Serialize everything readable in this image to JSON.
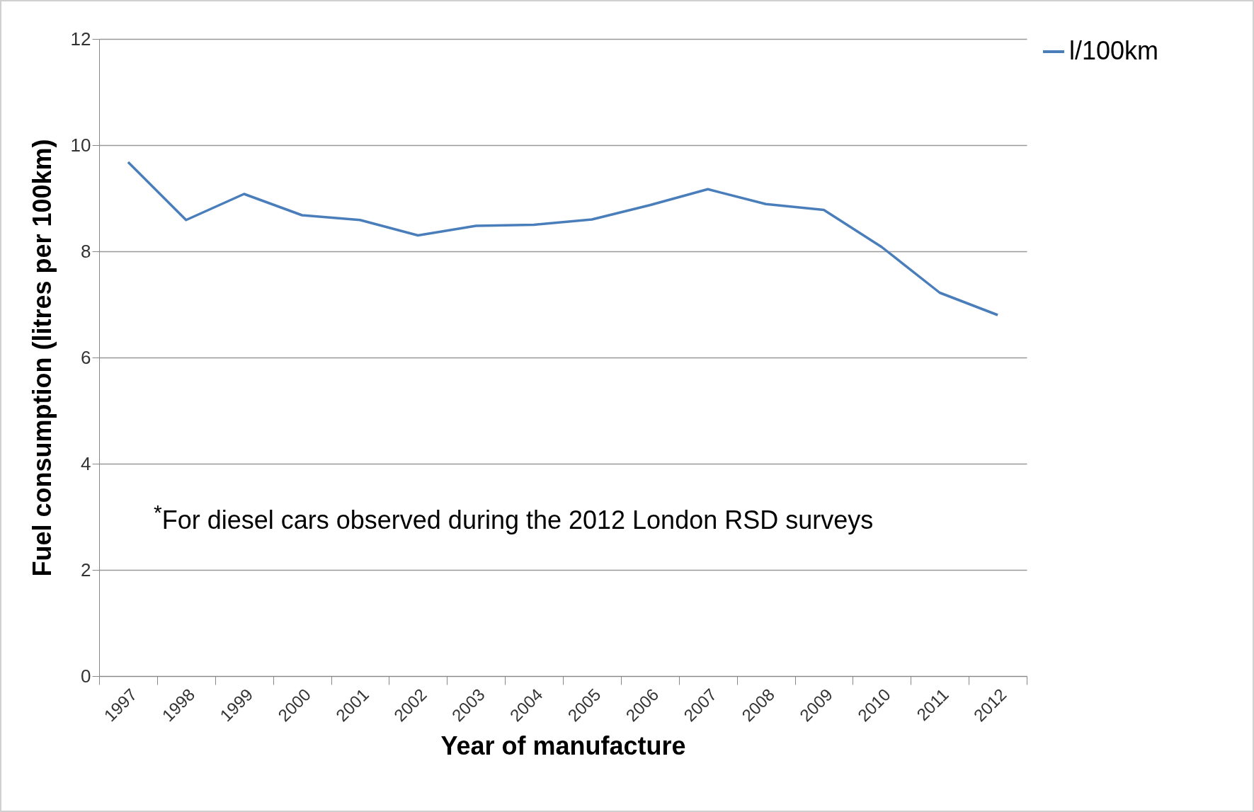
{
  "chart_data": {
    "type": "line",
    "xlabel": "Year of manufacture",
    "ylabel": "Fuel consumption (litres per 100km)",
    "categories": [
      "1997",
      "1998",
      "1999",
      "2000",
      "2001",
      "2002",
      "2003",
      "2004",
      "2005",
      "2006",
      "2007",
      "2008",
      "2009",
      "2010",
      "2011",
      "2012"
    ],
    "series": [
      {
        "name": "l/100km",
        "color": "#4a7ebb",
        "values": [
          9.68,
          8.59,
          9.08,
          8.68,
          8.59,
          8.3,
          8.48,
          8.5,
          8.6,
          8.87,
          9.17,
          8.89,
          8.78,
          8.08,
          7.22,
          6.8
        ]
      }
    ],
    "ylim": [
      0,
      12
    ],
    "yticks": [
      0,
      2,
      4,
      6,
      8,
      10,
      12
    ],
    "grid": "y",
    "legend": "right",
    "marker": "none",
    "annotations": [
      "$^{*}$For diesel cars observed during the 2012 London RSD surveys"
    ]
  }
}
